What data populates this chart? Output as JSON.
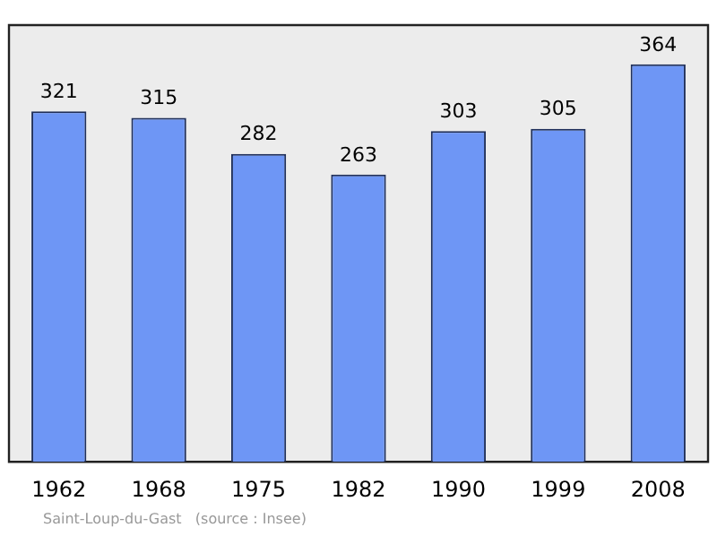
{
  "chart_data": {
    "type": "bar",
    "categories": [
      "1962",
      "1968",
      "1975",
      "1982",
      "1990",
      "1999",
      "2008"
    ],
    "values": [
      321,
      315,
      282,
      263,
      303,
      305,
      364
    ],
    "color": "#6e96f5",
    "ylim": [
      0,
      400
    ],
    "data_labels": true,
    "grid": false,
    "legend": false,
    "tick_labels": "x",
    "annotations": [
      "Saint-Loup-du-Gast   (source : Insee)"
    ]
  }
}
